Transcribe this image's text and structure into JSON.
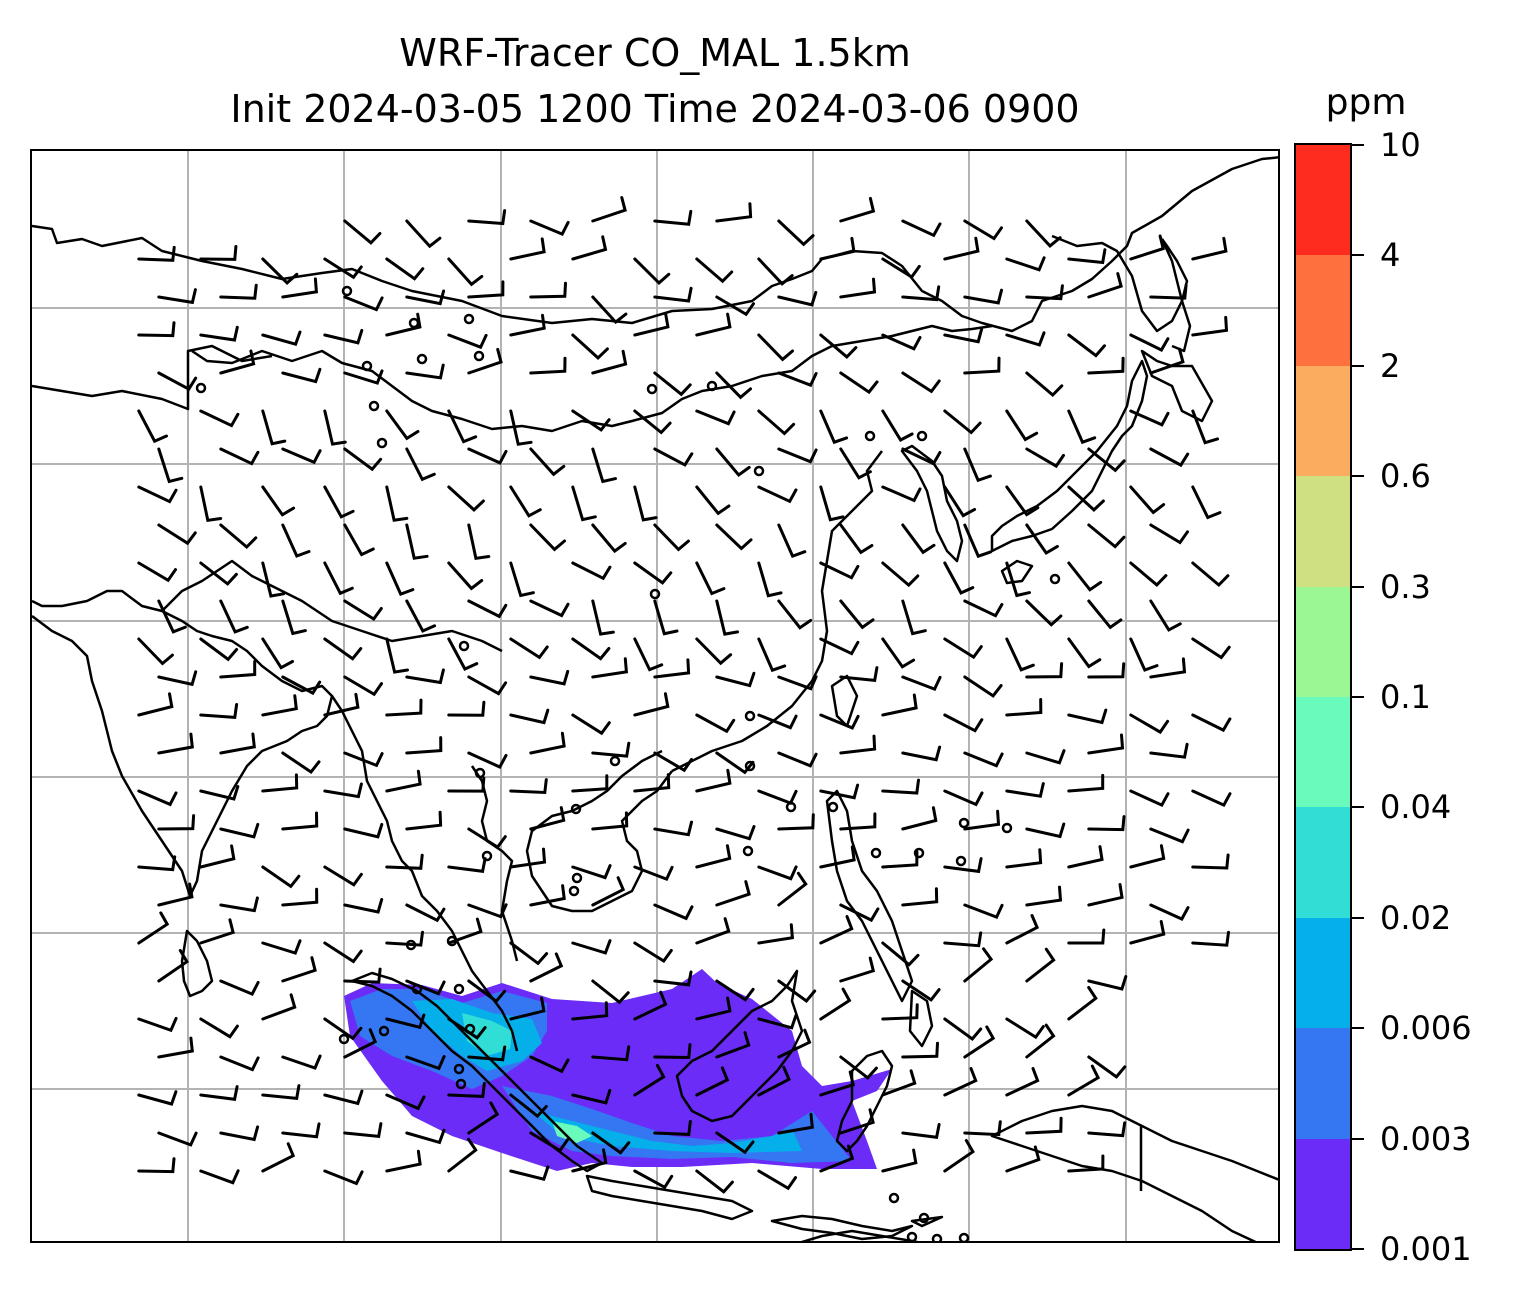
{
  "title": {
    "line1": "WRF-Tracer CO_MAL 1.5km",
    "line2": "Init 2024-03-05 1200 Time 2024-03-06 0900"
  },
  "colorbar": {
    "unit": "ppm",
    "levels": [
      "0.001",
      "0.003",
      "0.006",
      "0.02",
      "0.04",
      "0.1",
      "0.3",
      "0.6",
      "2",
      "4",
      "10"
    ],
    "colors": [
      "#6a2cf6",
      "#3576f3",
      "#05b0ea",
      "#31ded6",
      "#69fbbb",
      "#9bf793",
      "#cfe083",
      "#fcac5f",
      "#fe713f",
      "#fe2c1e"
    ]
  },
  "map": {
    "gridlines": true,
    "features": [
      "coastlines",
      "country-borders",
      "wind-barbs",
      "tracer-concentration"
    ]
  }
}
